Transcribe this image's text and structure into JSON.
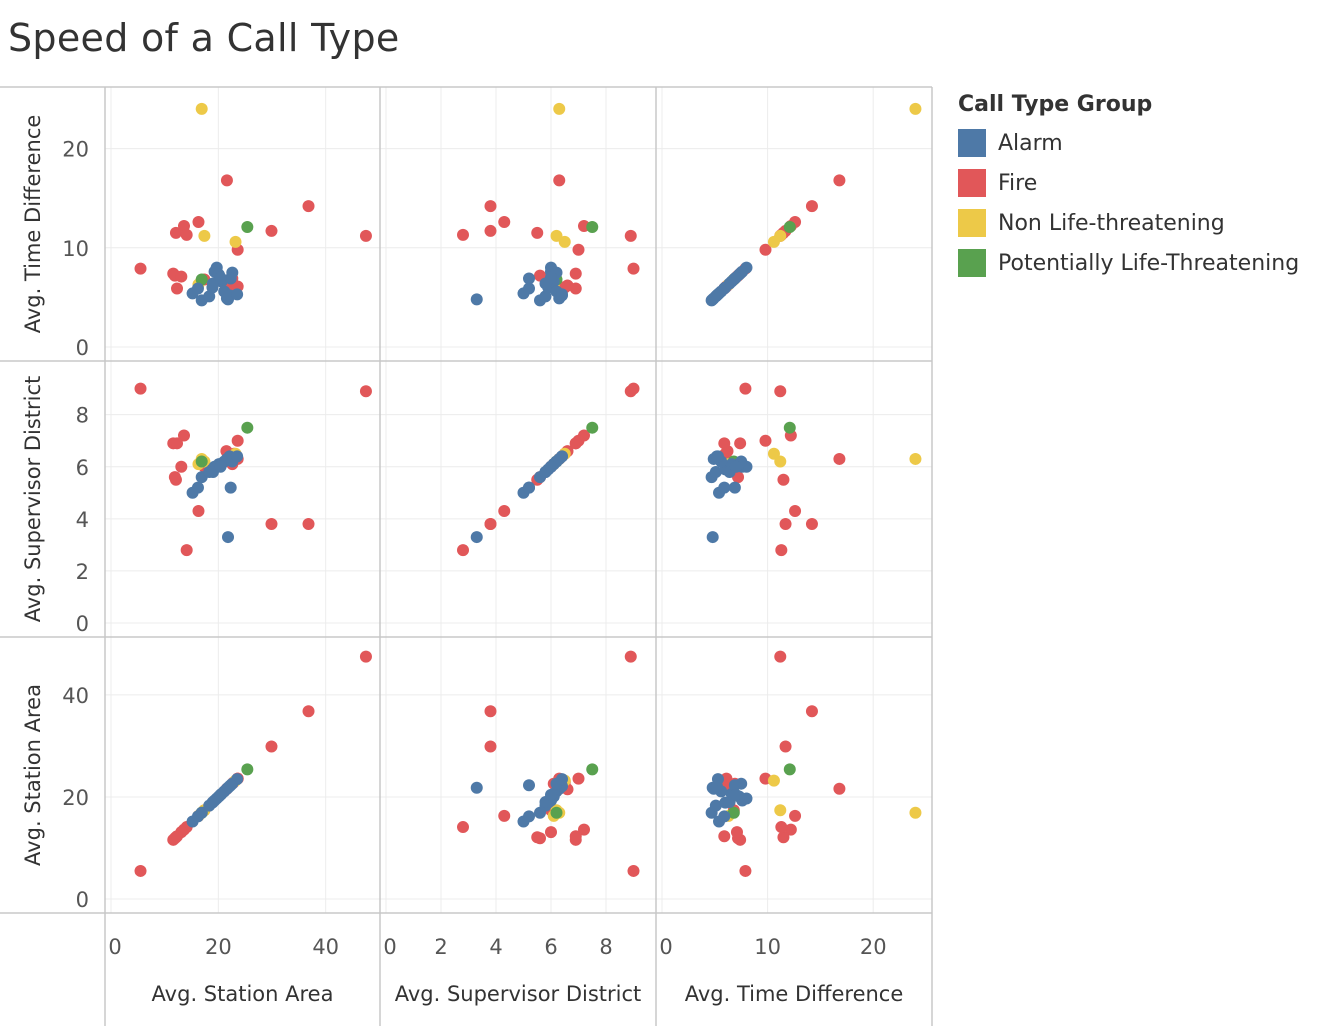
{
  "title": "Speed of a Call Type",
  "chart_data": {
    "type": "scatter",
    "variables": [
      "Avg. Station Area",
      "Avg. Supervisor District",
      "Avg. Time Difference"
    ],
    "row_order": [
      "Avg. Time Difference",
      "Avg. Supervisor District",
      "Avg. Station Area"
    ],
    "col_order": [
      "Avg. Station Area",
      "Avg. Supervisor District",
      "Avg. Time Difference"
    ],
    "axes": {
      "Avg. Station Area": {
        "range": [
          0,
          49
        ],
        "ticks": [
          "0",
          "20",
          "40"
        ]
      },
      "Avg. Supervisor District": {
        "range": [
          0,
          9.6
        ],
        "ticks": [
          "0",
          "2",
          "4",
          "6",
          "8"
        ]
      },
      "Avg. Time Difference": {
        "range": [
          0,
          25
        ],
        "ticks": [
          "0",
          "10",
          "20"
        ]
      }
    },
    "grid": true,
    "legend": {
      "title": "Call Type Group",
      "placement": "right",
      "items": [
        {
          "name": "Alarm",
          "color": "#4e79a7"
        },
        {
          "name": "Fire",
          "color": "#e15759"
        },
        {
          "name": "Non Life-threatening",
          "color": "#edc948"
        },
        {
          "name": "Potentially Life-Threatening",
          "color": "#59a14f"
        }
      ]
    },
    "points": [
      {
        "group": "Fire",
        "station": 47.5,
        "district": 8.9,
        "time": 11.2
      },
      {
        "group": "Fire",
        "station": 36.8,
        "district": 3.8,
        "time": 14.2
      },
      {
        "group": "Fire",
        "station": 29.9,
        "district": 3.8,
        "time": 11.7
      },
      {
        "group": "Fire",
        "station": 21.6,
        "district": 6.3,
        "time": 16.8
      },
      {
        "group": "Fire",
        "station": 16.3,
        "district": 4.3,
        "time": 12.6
      },
      {
        "group": "Fire",
        "station": 13.6,
        "district": 7.2,
        "time": 12.2
      },
      {
        "group": "Fire",
        "station": 12.1,
        "district": 5.5,
        "time": 11.5
      },
      {
        "group": "Fire",
        "station": 23.6,
        "district": 7.0,
        "time": 9.8
      },
      {
        "group": "Fire",
        "station": 14.1,
        "district": 2.8,
        "time": 11.3
      },
      {
        "group": "Fire",
        "station": 5.5,
        "district": 9.0,
        "time": 7.9
      },
      {
        "group": "Fire",
        "station": 11.6,
        "district": 6.9,
        "time": 7.4
      },
      {
        "group": "Fire",
        "station": 11.9,
        "district": 5.6,
        "time": 7.2
      },
      {
        "group": "Fire",
        "station": 13.1,
        "district": 6.0,
        "time": 7.1
      },
      {
        "group": "Fire",
        "station": 17.4,
        "district": 6.0,
        "time": 6.8
      },
      {
        "group": "Fire",
        "station": 22.6,
        "district": 6.1,
        "time": 6.9
      },
      {
        "group": "Fire",
        "station": 21.5,
        "district": 6.6,
        "time": 6.2
      },
      {
        "group": "Fire",
        "station": 22.9,
        "district": 6.5,
        "time": 6.0
      },
      {
        "group": "Fire",
        "station": 12.3,
        "district": 6.9,
        "time": 5.9
      },
      {
        "group": "Fire",
        "station": 23.6,
        "district": 6.3,
        "time": 6.1
      },
      {
        "group": "Non Life-threatening",
        "station": 16.9,
        "district": 6.3,
        "time": 24.0
      },
      {
        "group": "Non Life-threatening",
        "station": 17.4,
        "district": 6.2,
        "time": 11.2
      },
      {
        "group": "Non Life-threatening",
        "station": 23.2,
        "district": 6.5,
        "time": 10.6
      },
      {
        "group": "Non Life-threatening",
        "station": 16.3,
        "district": 6.1,
        "time": 6.3
      },
      {
        "group": "Potentially Life-Threatening",
        "station": 25.4,
        "district": 7.5,
        "time": 12.1
      },
      {
        "group": "Potentially Life-Threatening",
        "station": 16.9,
        "district": 6.2,
        "time": 6.8
      },
      {
        "group": "Alarm",
        "station": 21.8,
        "district": 3.3,
        "time": 4.8
      },
      {
        "group": "Alarm",
        "station": 15.2,
        "district": 5.0,
        "time": 5.4
      },
      {
        "group": "Alarm",
        "station": 16.2,
        "district": 5.2,
        "time": 5.9
      },
      {
        "group": "Alarm",
        "station": 16.9,
        "district": 5.6,
        "time": 4.7
      },
      {
        "group": "Alarm",
        "station": 18.3,
        "district": 5.8,
        "time": 5.1
      },
      {
        "group": "Alarm",
        "station": 18.9,
        "district": 5.9,
        "time": 6.0
      },
      {
        "group": "Alarm",
        "station": 19.3,
        "district": 6.0,
        "time": 7.6
      },
      {
        "group": "Alarm",
        "station": 19.7,
        "district": 6.0,
        "time": 8.0
      },
      {
        "group": "Alarm",
        "station": 20.1,
        "district": 6.1,
        "time": 7.3
      },
      {
        "group": "Alarm",
        "station": 20.6,
        "district": 6.1,
        "time": 6.6
      },
      {
        "group": "Alarm",
        "station": 21.1,
        "district": 6.2,
        "time": 5.6
      },
      {
        "group": "Alarm",
        "station": 21.6,
        "district": 6.3,
        "time": 4.9
      },
      {
        "group": "Alarm",
        "station": 22.1,
        "district": 6.4,
        "time": 5.2
      },
      {
        "group": "Alarm",
        "station": 22.6,
        "district": 6.2,
        "time": 7.5
      },
      {
        "group": "Alarm",
        "station": 23.5,
        "district": 6.4,
        "time": 5.3
      },
      {
        "group": "Alarm",
        "station": 22.3,
        "district": 5.2,
        "time": 6.9
      },
      {
        "group": "Alarm",
        "station": 19.0,
        "district": 5.8,
        "time": 6.4
      },
      {
        "group": "Alarm",
        "station": 20.4,
        "district": 6.0,
        "time": 7.0
      }
    ]
  }
}
